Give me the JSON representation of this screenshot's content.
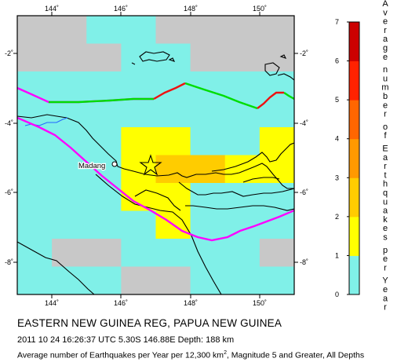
{
  "map": {
    "lon_ticks": [
      "144˚",
      "146˚",
      "148˚",
      "150˚"
    ],
    "lat_ticks": [
      "-2˚",
      "-4˚",
      "-6˚",
      "-8˚"
    ],
    "place_label": "Madang",
    "grid": [
      [
        0,
        0,
        1,
        1,
        0,
        0,
        0,
        0
      ],
      [
        0,
        0,
        0,
        1,
        1,
        0,
        0,
        0
      ],
      [
        1,
        1,
        1,
        1,
        1,
        1,
        1,
        1
      ],
      [
        1,
        1,
        1,
        1,
        1,
        1,
        1,
        1
      ],
      [
        1,
        1,
        1,
        2,
        2,
        1,
        1,
        2
      ],
      [
        1,
        1,
        1,
        2,
        3,
        3,
        2,
        2
      ],
      [
        1,
        1,
        1,
        2,
        2,
        1,
        1,
        1
      ],
      [
        1,
        1,
        1,
        1,
        2,
        1,
        1,
        1
      ],
      [
        1,
        0,
        0,
        1,
        1,
        1,
        1,
        0
      ],
      [
        1,
        1,
        1,
        0,
        0,
        1,
        1,
        1
      ]
    ],
    "colors": {
      "land": "#000000",
      "plate_boundary_magenta": "#ff00ff",
      "ridge_green": "#00dd00",
      "trench_red": "#ee1111",
      "river_blue": "#2266ff"
    }
  },
  "colorbar": {
    "title": "Average number of Earthquakes per Year",
    "ticks": [
      "0",
      "1",
      "2",
      "3",
      "4",
      "5",
      "6",
      "7"
    ],
    "stops": [
      "#c0c0c0",
      "#80f0e8",
      "#ffff00",
      "#ffcc00",
      "#ff9900",
      "#ff6600",
      "#ff2200",
      "#cc0000"
    ]
  },
  "captions": {
    "region": "EASTERN NEW GUINEA REG, PAPUA NEW GUINEA",
    "event": "2011 10 24 16:26:37 UTC 5.30S 146.88E Depth: 188 km",
    "desc_prefix": "Average number of Earthquakes per Year per 12,300 km",
    "desc_sup": "2",
    "desc_suffix": ", Magnitude 5 and Greater, All Depths"
  }
}
